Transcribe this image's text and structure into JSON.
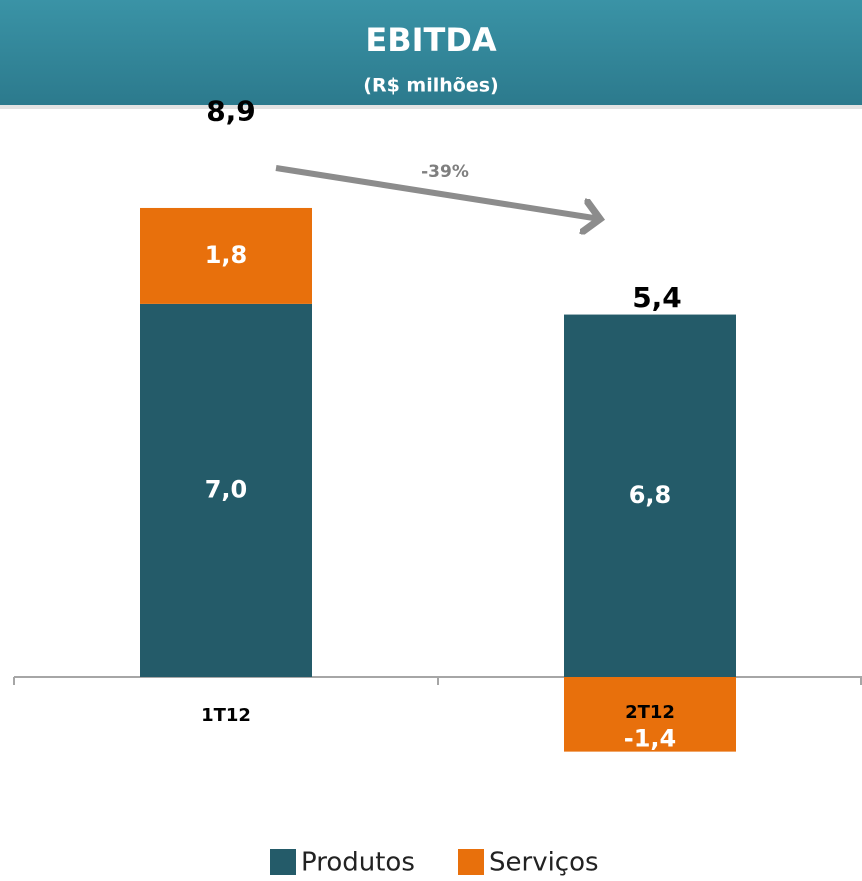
{
  "chart_data": {
    "type": "stacked_bar",
    "title": "EBITDA",
    "subtitle": "(R$ milhões)",
    "categories": [
      "1T12",
      "2T12"
    ],
    "series": [
      {
        "name": "Produtos",
        "color": "#245b69",
        "values": [
          7.0,
          6.8
        ],
        "value_labels": [
          "7,0",
          "6,8"
        ]
      },
      {
        "name": "Serviços",
        "color": "#e8700c",
        "values": [
          1.8,
          -1.4
        ],
        "value_labels": [
          "1,8",
          "-1,4"
        ]
      }
    ],
    "totals": [
      8.9,
      5.4
    ],
    "total_labels": [
      "8,9",
      "5,4"
    ],
    "annotation": "-39%"
  }
}
